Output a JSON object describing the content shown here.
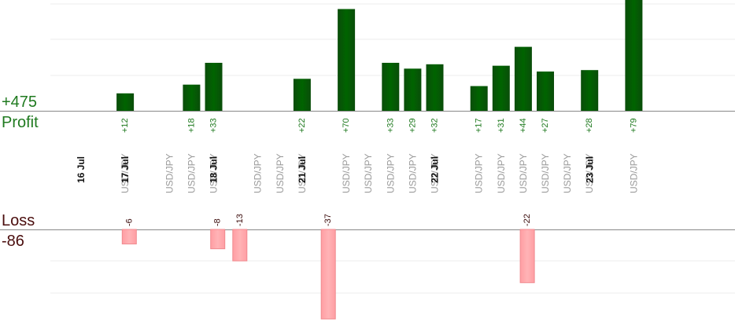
{
  "summary": {
    "profit_total": "+475",
    "profit_label": "Profit",
    "loss_label": "Loss",
    "loss_total": "-86"
  },
  "colors": {
    "profit_bar": "#006400",
    "profit_text": "#1f7a1f",
    "loss_fill": "#ffb3b6",
    "loss_stroke": "#f08a8f",
    "loss_text": "#3a0a0a",
    "pair_text": "#9a9a9a",
    "date_text": "#111111",
    "grid": "#ececec",
    "baseline": "#888888"
  },
  "chart_data": {
    "type": "bar",
    "title": "",
    "xlabel": "",
    "ylabel": "",
    "grid": true,
    "columns": [
      {
        "label": "16 Jul",
        "kind": "date"
      },
      {
        "label": "USD/JPY",
        "kind": "trade",
        "value": 12
      },
      {
        "label": "17 Jul",
        "kind": "date"
      },
      {
        "label": "USD/JPY",
        "kind": "trade",
        "value": -6
      },
      {
        "label": "USD/JPY",
        "kind": "trade",
        "value": 18
      },
      {
        "label": "USD/JPY",
        "kind": "trade",
        "value": 33
      },
      {
        "label": "18 Jul",
        "kind": "date"
      },
      {
        "label": "USD/JPY",
        "kind": "trade",
        "value": -8
      },
      {
        "label": "USD/JPY",
        "kind": "trade",
        "value": -13
      },
      {
        "label": "USD/JPY",
        "kind": "trade",
        "value": 22
      },
      {
        "label": "21 Jul",
        "kind": "date"
      },
      {
        "label": "USD/JPY",
        "kind": "trade",
        "value": 70
      },
      {
        "label": "USD/JPY",
        "kind": "trade",
        "value": -37
      },
      {
        "label": "USD/JPY",
        "kind": "trade",
        "value": 33
      },
      {
        "label": "USD/JPY",
        "kind": "trade",
        "value": 29
      },
      {
        "label": "USD/JPY",
        "kind": "trade",
        "value": 32
      },
      {
        "label": "22 Jul",
        "kind": "date"
      },
      {
        "label": "USD/JPY",
        "kind": "trade",
        "value": 17
      },
      {
        "label": "USD/JPY",
        "kind": "trade",
        "value": 31
      },
      {
        "label": "USD/JPY",
        "kind": "trade",
        "value": 44
      },
      {
        "label": "USD/JPY",
        "kind": "trade",
        "value": 27
      },
      {
        "label": "USD/JPY",
        "kind": "trade",
        "value": -22
      },
      {
        "label": "USD/JPY",
        "kind": "trade",
        "value": 28
      },
      {
        "label": "23 Jul",
        "kind": "date"
      },
      {
        "label": "USD/JPY",
        "kind": "trade",
        "value": 79
      }
    ]
  }
}
